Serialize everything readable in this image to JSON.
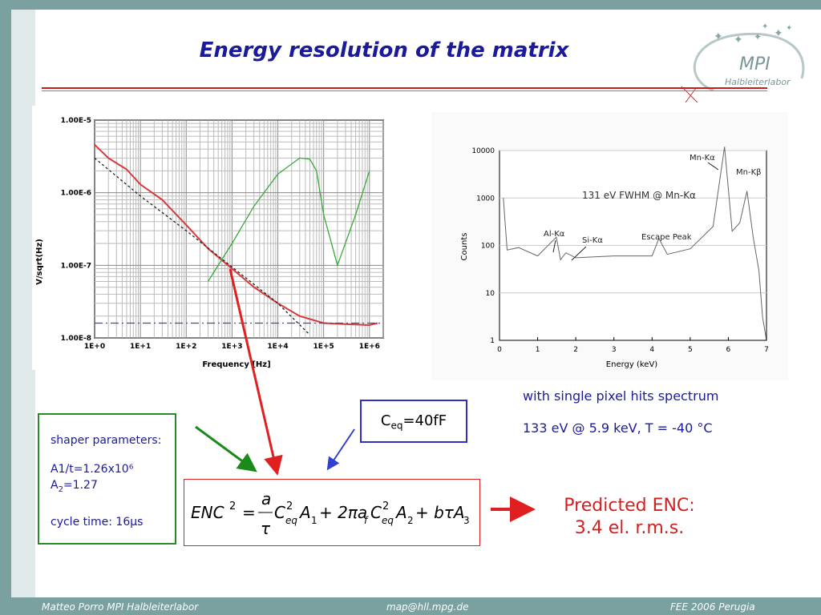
{
  "slide": {
    "title": "Energy resolution of the matrix",
    "logo": {
      "main": "MPI",
      "sub": "Halbleiterlabor"
    }
  },
  "left_plot": {
    "ylabel": "V/sqrt(Hz)",
    "xlabel": "Frequency [Hz]",
    "y_ticks": [
      "1.00E-5",
      "1.00E-6",
      "1.00E-7",
      "1.00E-8"
    ],
    "x_ticks": [
      "1E+0",
      "1E+1",
      "1E+2",
      "1E+3",
      "1E+4",
      "1E+5",
      "1E+6"
    ]
  },
  "right_plot": {
    "ylabel": "Counts",
    "xlabel": "Energy (keV)",
    "y_ticks": [
      "10000",
      "1000",
      "100",
      "10",
      "1"
    ],
    "x_ticks": [
      "0",
      "1",
      "2",
      "3",
      "4",
      "5",
      "6",
      "7"
    ],
    "annotation_fwhm": "131 eV FWHM @ Mn-Kα",
    "peak_labels": {
      "mnka": "Mn-Kα",
      "mnkb": "Mn-Kβ",
      "alka": "Al-Kα",
      "sika": "Si-Kα",
      "escape": "Escape Peak"
    }
  },
  "spectrum_notes": {
    "line1": "with single pixel hits spectrum",
    "line2": "133 eV @ 5.9 keV, T  =  -40 °C"
  },
  "shaper": {
    "heading": "shaper parameters:",
    "a1": "A1/t=1.26x10⁶",
    "a2_prefix": "A",
    "a2_sub": "2",
    "a2_value": "=1.27",
    "cycle": "cycle time: 16μs"
  },
  "ceq": {
    "prefix": "C",
    "sub": "eq",
    "value": "=40fF"
  },
  "formula": {
    "lhs": "ENC",
    "lhs_exp": "2",
    "eq": "=",
    "frac_num": "a",
    "frac_den": "τ",
    "c": "C",
    "c_exp": "2",
    "c_sub": "eq",
    "a1": "A",
    "a1_sub": "1",
    "plus1": "+ 2πa",
    "af_sub": "f",
    "c2": "C",
    "c2_exp": "2",
    "c2_sub": "eq",
    "a2": "A",
    "a2_sub": "2",
    "plus2": "+ bτA",
    "a3_sub": "3"
  },
  "prediction": {
    "line1": "Predicted ENC:",
    "line2": "3.4 el. r.m.s."
  },
  "footer": {
    "left": "Matteo Porro  MPI Halbleiterlabor",
    "center": "map@hll.mpg.de",
    "right": "FEE 2006 Perugia"
  },
  "colors": {
    "red_curve": "#d83a3a",
    "green_curve": "#3aaa3a",
    "blue_line": "#3050c0",
    "title": "#1a1a9a"
  },
  "chart_data": [
    {
      "type": "line",
      "xlabel": "Frequency [Hz]",
      "ylabel": "V/sqrt(Hz)",
      "xscale": "log",
      "yscale": "log",
      "xlim": [
        1,
        2000000
      ],
      "ylim": [
        1e-08,
        1e-05
      ],
      "grid": true,
      "series": [
        {
          "name": "",
          "x": [
            1,
            2,
            5,
            10,
            30,
            100,
            300,
            1000,
            3000,
            10000,
            30000,
            100000,
            300000,
            1000000,
            1500000
          ],
          "y": [
            4.6e-06,
            3e-06,
            2.1e-06,
            1.3e-06,
            8e-07,
            3.6e-07,
            1.7e-07,
            9e-08,
            5e-08,
            3e-08,
            2e-08,
            1.6e-08,
            1.55e-08,
            1.5e-08,
            1.6e-08
          ]
        },
        {
          "name": "",
          "x": [
            1,
            10,
            100,
            1000,
            10000,
            50000
          ],
          "y": [
            3e-06,
            9e-07,
            3e-07,
            9.5e-08,
            3e-08,
            1.1e-08
          ]
        },
        {
          "name": "",
          "x": [
            300,
            1000,
            3000,
            10000,
            30000,
            50000,
            70000,
            100000,
            200000,
            500000,
            1000000
          ],
          "y": [
            6e-08,
            2e-07,
            6.5e-07,
            1.8e-06,
            3e-06,
            2.9e-06,
            2e-06,
            5e-07,
            1e-07,
            5e-07,
            2e-06
          ]
        },
        {
          "name": "",
          "x": [
            1,
            2000000
          ],
          "y": [
            1.6e-08,
            1.6e-08
          ]
        }
      ]
    },
    {
      "type": "line",
      "xlabel": "Energy (keV)",
      "ylabel": "Counts",
      "yscale": "log",
      "xlim": [
        0,
        7
      ],
      "ylim": [
        1,
        10000
      ],
      "grid": true,
      "series": [
        {
          "name": "",
          "x": [
            0.1,
            0.2,
            0.5,
            1.0,
            1.49,
            1.6,
            1.74,
            2.0,
            3.0,
            4.0,
            4.18,
            4.4,
            5.0,
            5.6,
            5.9,
            6.1,
            6.3,
            6.49,
            6.65,
            6.8,
            6.9,
            7.0
          ],
          "y": [
            1000,
            80,
            90,
            60,
            150,
            50,
            70,
            55,
            60,
            60,
            140,
            65,
            85,
            250,
            12000,
            200,
            300,
            1400,
            150,
            30,
            3,
            1
          ]
        }
      ]
    }
  ]
}
